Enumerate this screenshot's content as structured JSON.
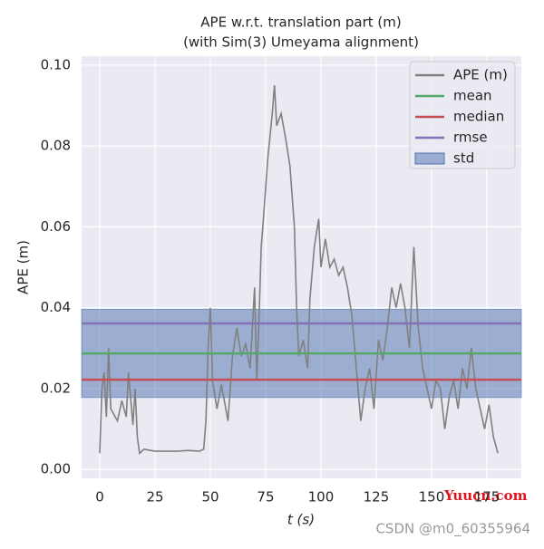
{
  "chart_data": {
    "type": "line",
    "title": "APE w.r.t. translation part (m)",
    "subtitle": "(with Sim(3) Umeyama alignment)",
    "x_label": "t (s)",
    "y_label": "APE (m)",
    "xlim": [
      -8.2,
      190.6
    ],
    "ylim": [
      -0.0022,
      0.1022
    ],
    "xticks": [
      0,
      25,
      50,
      75,
      100,
      125,
      150,
      175
    ],
    "yticks": [
      {
        "value": 0,
        "label": "0.00"
      },
      0.02,
      0.04,
      0.06,
      0.08,
      {
        "value": 0.1,
        "label": "0.10"
      }
    ],
    "grid": true,
    "legend": "upper right",
    "series": [
      {
        "name": "APE (m)",
        "color": "#808080",
        "x": [
          0,
          1,
          2,
          3,
          4,
          5,
          6,
          8,
          10,
          12,
          13,
          15,
          16,
          17,
          18,
          20,
          25,
          30,
          35,
          40,
          45,
          47,
          48,
          49,
          50,
          51,
          53,
          55,
          58,
          60,
          62,
          64,
          66,
          68,
          70,
          71,
          72,
          73,
          74,
          76,
          78,
          79,
          80,
          82,
          84,
          86,
          88,
          89,
          90,
          92,
          94,
          95,
          97,
          99,
          100,
          102,
          104,
          106,
          108,
          110,
          112,
          114,
          116,
          118,
          120,
          122,
          124,
          126,
          128,
          130,
          132,
          134,
          136,
          138,
          140,
          142,
          144,
          146,
          148,
          150,
          152,
          154,
          156,
          158,
          160,
          162,
          164,
          166,
          168,
          170,
          172,
          174,
          176,
          178,
          180
        ],
        "values": [
          0.004,
          0.02,
          0.024,
          0.013,
          0.03,
          0.015,
          0.014,
          0.012,
          0.017,
          0.013,
          0.024,
          0.011,
          0.02,
          0.008,
          0.004,
          0.005,
          0.0045,
          0.0045,
          0.0045,
          0.0047,
          0.0045,
          0.005,
          0.012,
          0.03,
          0.04,
          0.022,
          0.015,
          0.021,
          0.012,
          0.028,
          0.035,
          0.028,
          0.031,
          0.025,
          0.045,
          0.022,
          0.037,
          0.055,
          0.062,
          0.077,
          0.088,
          0.095,
          0.085,
          0.088,
          0.082,
          0.075,
          0.06,
          0.04,
          0.028,
          0.032,
          0.025,
          0.042,
          0.055,
          0.062,
          0.05,
          0.057,
          0.05,
          0.052,
          0.048,
          0.05,
          0.045,
          0.038,
          0.025,
          0.012,
          0.02,
          0.025,
          0.015,
          0.032,
          0.027,
          0.035,
          0.045,
          0.04,
          0.046,
          0.04,
          0.03,
          0.055,
          0.035,
          0.025,
          0.02,
          0.015,
          0.022,
          0.02,
          0.01,
          0.018,
          0.022,
          0.015,
          0.025,
          0.02,
          0.03,
          0.02,
          0.015,
          0.01,
          0.016,
          0.008,
          0.004
        ]
      }
    ],
    "stats": [
      {
        "name": "mean",
        "color": "#55a868",
        "value": 0.0287
      },
      {
        "name": "median",
        "color": "#c44e52",
        "value": 0.0222
      },
      {
        "name": "rmse",
        "color": "#8172b3",
        "value": 0.0361
      },
      {
        "name": "std",
        "color": "#4c72b0",
        "value": 0.0109
      }
    ],
    "watermarks": [
      "Yuucn.com",
      "CSDN @m0_60355964"
    ]
  }
}
